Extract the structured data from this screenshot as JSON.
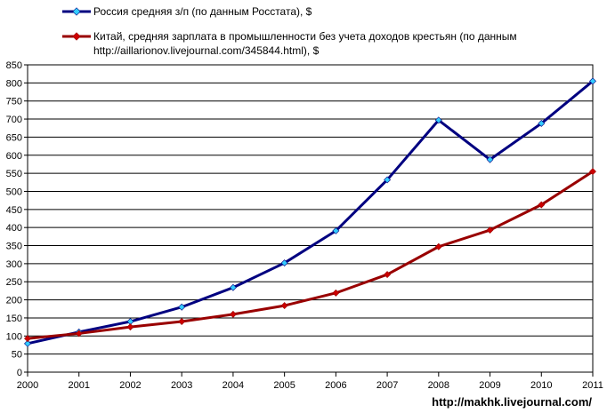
{
  "chart_data": {
    "type": "line",
    "x": [
      2000,
      2001,
      2002,
      2003,
      2004,
      2005,
      2006,
      2007,
      2008,
      2009,
      2010,
      2011
    ],
    "ylim": [
      0,
      850
    ],
    "ytick_step": 50,
    "grid": "horizontal",
    "legend_position": "top",
    "series": [
      {
        "name": "Россия средняя з/п (по данным Росстата), $",
        "color": "#000080",
        "marker_color": "#33ccff",
        "values": [
          79,
          111,
          140,
          180,
          234,
          302,
          391,
          532,
          697,
          588,
          688,
          805
        ]
      },
      {
        "name": "Китай, средняя зарплата в промышленности без учета доходов крестьян (по данным",
        "name_line2": "http://aillarionov.livejournal.com/345844.html), $",
        "color": "#990000",
        "marker_color": "#cc0000",
        "values": [
          93,
          107,
          125,
          140,
          160,
          184,
          219,
          270,
          347,
          393,
          463,
          555
        ]
      }
    ],
    "credit": "http://makhk.livejournal.com/"
  }
}
